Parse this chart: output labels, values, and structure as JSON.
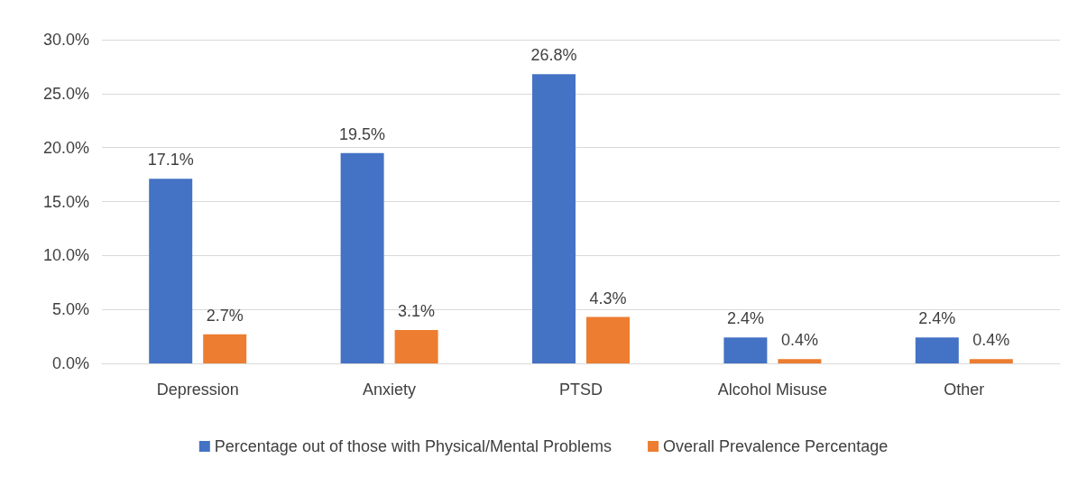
{
  "chart_data": {
    "type": "bar",
    "categories": [
      "Depression",
      "Anxiety",
      "PTSD",
      "Alcohol Misuse",
      "Other"
    ],
    "series": [
      {
        "name": "Percentage out of those with Physical/Mental Problems",
        "color": "#4472c4",
        "values": [
          17.1,
          19.5,
          26.8,
          2.4,
          2.4
        ],
        "value_labels": [
          "17.1%",
          "19.5%",
          "26.8%",
          "2.4%",
          "2.4%"
        ]
      },
      {
        "name": "Overall Prevalence Percentage",
        "color": "#ed7d31",
        "values": [
          2.7,
          3.1,
          4.3,
          0.4,
          0.4
        ],
        "value_labels": [
          "2.7%",
          "3.1%",
          "4.3%",
          "0.4%",
          "0.4%"
        ]
      }
    ],
    "ylim": [
      0,
      30
    ],
    "yticks": [
      {
        "value": 0,
        "label": "0.0%"
      },
      {
        "value": 5,
        "label": "5.0%"
      },
      {
        "value": 10,
        "label": "10.0%"
      },
      {
        "value": 15,
        "label": "15.0%"
      },
      {
        "value": 20,
        "label": "20.0%"
      },
      {
        "value": 25,
        "label": "25.0%"
      },
      {
        "value": 30,
        "label": "30.0%"
      }
    ],
    "grid": "y",
    "legend": "bottom"
  }
}
